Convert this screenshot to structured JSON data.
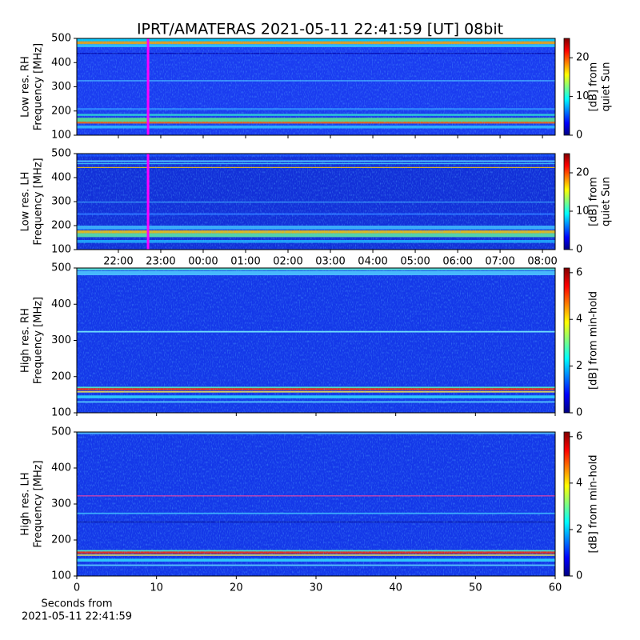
{
  "chart_data": [
    {
      "type": "heatmap",
      "title": "IPRT/AMATERAS 2021-05-11 22:41:59 [UT]   08bit",
      "ylabel": [
        "Low res. RH",
        "Frequency [MHz]"
      ],
      "ylim": [
        100,
        500
      ],
      "yticks": [
        100,
        200,
        300,
        400,
        500
      ],
      "xlim": [
        21.02,
        32.3
      ],
      "xticks": [
        22,
        23,
        24,
        25,
        26,
        27,
        28,
        29,
        30,
        31,
        32
      ],
      "cursor_x": 22.7,
      "colorbar": {
        "label": [
          "[dB] from",
          "quiet Sun"
        ],
        "lim": [
          0,
          25
        ],
        "ticks": [
          0,
          10,
          20
        ]
      }
    },
    {
      "type": "heatmap",
      "ylabel": [
        "Low res. LH",
        "Frequency [MHz]"
      ],
      "ylim": [
        100,
        500
      ],
      "yticks": [
        100,
        200,
        300,
        400,
        500
      ],
      "xlim": [
        21.02,
        32.3
      ],
      "xticks": [
        {
          "value": 22,
          "label": "22:00"
        },
        {
          "value": 23,
          "label": "23:00"
        },
        {
          "value": 24,
          "label": "00:00"
        },
        {
          "value": 25,
          "label": "01:00"
        },
        {
          "value": 26,
          "label": "02:00"
        },
        {
          "value": 27,
          "label": "03:00"
        },
        {
          "value": 28,
          "label": "04:00"
        },
        {
          "value": 29,
          "label": "05:00"
        },
        {
          "value": 30,
          "label": "06:00"
        },
        {
          "value": 31,
          "label": "07:00"
        },
        {
          "value": 32,
          "label": "08:00"
        }
      ],
      "cursor_x": 22.7,
      "colorbar": {
        "label": [
          "[dB] from",
          "quiet Sun"
        ],
        "lim": [
          0,
          25
        ],
        "ticks": [
          0,
          10,
          20
        ]
      }
    },
    {
      "type": "heatmap",
      "ylabel": [
        "High res. RH",
        "Frequency [MHz]"
      ],
      "ylim": [
        100,
        500
      ],
      "yticks": [
        100,
        200,
        300,
        400,
        500
      ],
      "xlim": [
        0,
        60
      ],
      "xticks": [
        0,
        10,
        20,
        30,
        40,
        50,
        60
      ],
      "colorbar": {
        "label": [
          "[dB] from min-hold"
        ],
        "lim": [
          0,
          6.2
        ],
        "ticks": [
          0,
          2,
          4,
          6
        ]
      }
    },
    {
      "type": "heatmap",
      "ylabel": [
        "High res. LH",
        "Frequency [MHz]"
      ],
      "ylim": [
        100,
        500
      ],
      "yticks": [
        100,
        200,
        300,
        400,
        500
      ],
      "xlim": [
        0,
        60
      ],
      "xticks": [
        0,
        10,
        20,
        30,
        40,
        50,
        60
      ],
      "xlabel": [
        "Seconds from",
        "2021-05-11 22:41:59"
      ],
      "colorbar": {
        "label": [
          "[dB] from min-hold"
        ],
        "lim": [
          0,
          6.2
        ],
        "ticks": [
          0,
          2,
          4,
          6
        ]
      }
    }
  ]
}
